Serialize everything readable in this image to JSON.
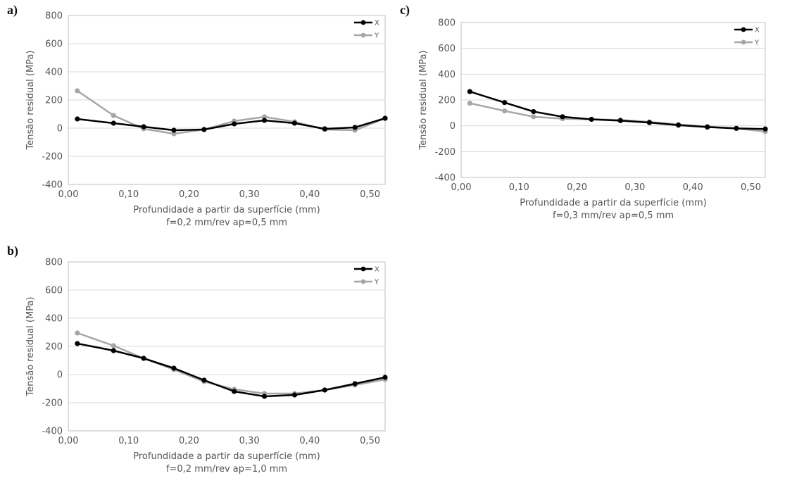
{
  "chart_data": [
    {
      "id": "a",
      "type": "line",
      "panel_label": "a)",
      "ylabel": "Tensão residual (MPa)",
      "xlabel": "Profundidade a partir da superfície (mm)",
      "subtitle": "f=0,2 mm/rev ap=0,5 mm",
      "xlim": [
        0.0,
        0.525
      ],
      "ylim": [
        -400,
        800
      ],
      "xticks": [
        "0,00",
        "0,10",
        "0,20",
        "0,30",
        "0,40",
        "0,50"
      ],
      "xtick_values": [
        0.0,
        0.1,
        0.2,
        0.3,
        0.4,
        0.5
      ],
      "yticks": [
        "-400",
        "-200",
        "0",
        "200",
        "400",
        "600",
        "800"
      ],
      "ytick_values": [
        -400,
        -200,
        0,
        200,
        400,
        600,
        800
      ],
      "legend_position": "top-right",
      "x": [
        0.015,
        0.075,
        0.125,
        0.175,
        0.225,
        0.275,
        0.325,
        0.375,
        0.425,
        0.475,
        0.525
      ],
      "series": [
        {
          "name": "X",
          "color": "#000000",
          "values": [
            65,
            35,
            10,
            -15,
            -10,
            30,
            55,
            35,
            -5,
            5,
            70
          ]
        },
        {
          "name": "Y",
          "color": "#a6a6a6",
          "values": [
            265,
            90,
            -5,
            -40,
            -10,
            50,
            80,
            45,
            -10,
            -15,
            70
          ]
        }
      ]
    },
    {
      "id": "c",
      "type": "line",
      "panel_label": "c)",
      "ylabel": "Tensão residual (MPa)",
      "xlabel": "Profundidade a partir da superfície (mm)",
      "subtitle": "f=0,3 mm/rev ap=0,5 mm",
      "xlim": [
        0.0,
        0.525
      ],
      "ylim": [
        -400,
        800
      ],
      "xticks": [
        "0,00",
        "0,10",
        "0,20",
        "0,30",
        "0,40",
        "0,50"
      ],
      "xtick_values": [
        0.0,
        0.1,
        0.2,
        0.3,
        0.4,
        0.5
      ],
      "yticks": [
        "-400",
        "-200",
        "0",
        "200",
        "400",
        "600",
        "800"
      ],
      "ytick_values": [
        -400,
        -200,
        0,
        200,
        400,
        600,
        800
      ],
      "legend_position": "top-right",
      "x": [
        0.015,
        0.075,
        0.125,
        0.175,
        0.225,
        0.275,
        0.325,
        0.375,
        0.425,
        0.475,
        0.525
      ],
      "series": [
        {
          "name": "X",
          "color": "#000000",
          "values": [
            265,
            180,
            110,
            70,
            50,
            40,
            25,
            5,
            -10,
            -20,
            -25
          ]
        },
        {
          "name": "Y",
          "color": "#a6a6a6",
          "values": [
            175,
            115,
            70,
            55,
            50,
            45,
            30,
            10,
            -5,
            -20,
            -45
          ]
        }
      ]
    },
    {
      "id": "b",
      "type": "line",
      "panel_label": "b)",
      "ylabel": "Tensão residual (MPa)",
      "xlabel": "Profundidade a partir da superfície (mm)",
      "subtitle": "f=0,2 mm/rev ap=1,0 mm",
      "xlim": [
        0.0,
        0.525
      ],
      "ylim": [
        -400,
        800
      ],
      "xticks": [
        "0,00",
        "0,10",
        "0,20",
        "0,30",
        "0,40",
        "0,50"
      ],
      "xtick_values": [
        0.0,
        0.1,
        0.2,
        0.3,
        0.4,
        0.5
      ],
      "yticks": [
        "-400",
        "-200",
        "0",
        "200",
        "400",
        "600",
        "800"
      ],
      "ytick_values": [
        -400,
        -200,
        0,
        200,
        400,
        600,
        800
      ],
      "legend_position": "top-right",
      "x": [
        0.015,
        0.075,
        0.125,
        0.175,
        0.225,
        0.275,
        0.325,
        0.375,
        0.425,
        0.475,
        0.525
      ],
      "series": [
        {
          "name": "X",
          "color": "#000000",
          "values": [
            220,
            170,
            115,
            45,
            -40,
            -120,
            -155,
            -145,
            -110,
            -65,
            -20
          ]
        },
        {
          "name": "Y",
          "color": "#a6a6a6",
          "values": [
            295,
            205,
            115,
            35,
            -50,
            -105,
            -135,
            -135,
            -110,
            -75,
            -35
          ]
        }
      ]
    }
  ]
}
